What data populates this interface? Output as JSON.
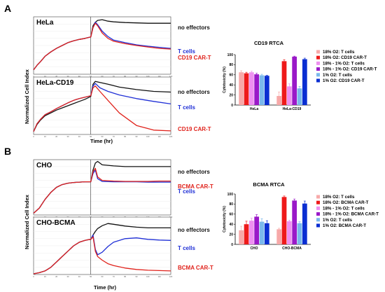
{
  "figure": {
    "panel_letters": [
      "A",
      "B"
    ]
  },
  "colors": {
    "black": "#111111",
    "blue": "#1f2fd6",
    "red": "#e0231c",
    "light_pink": "#f7a9a9",
    "red_bar": "#ee1a1a",
    "light_violet": "#ee90f0",
    "purple": "#9a19c8",
    "light_blue": "#7ab8ec",
    "dark_blue": "#0a2ed2"
  },
  "rtca": {
    "ylabel": "Normalized Cell Index",
    "xlabel": "Time (hr)"
  },
  "chart_data": [
    {
      "id": "hela",
      "type": "line",
      "cell_title": "HeLa",
      "xlabel": "Time (hr)",
      "ylabel": "Normalized Cell Index",
      "tick_labels": [
        "0",
        "10",
        "20",
        "30",
        "40",
        "50",
        "60",
        "70",
        "80",
        "90",
        "100",
        "110",
        "120"
      ],
      "xlim": [
        0,
        120
      ],
      "ylim": [
        0,
        1.6
      ],
      "series": [
        {
          "name": "no effectors",
          "color": "black",
          "x": [
            0,
            3,
            6,
            10,
            15,
            20,
            25,
            30,
            35,
            40,
            45,
            50,
            52,
            54,
            56,
            60,
            65,
            70,
            80,
            90,
            100,
            110,
            120
          ],
          "y": [
            0.12,
            0.25,
            0.35,
            0.5,
            0.62,
            0.72,
            0.8,
            0.88,
            0.93,
            0.97,
            1.0,
            1.04,
            1.35,
            1.45,
            1.5,
            1.52,
            1.48,
            1.46,
            1.44,
            1.43,
            1.42,
            1.42,
            1.42
          ]
        },
        {
          "name": "T cells",
          "color": "blue",
          "x": [
            0,
            3,
            6,
            10,
            15,
            20,
            25,
            30,
            35,
            40,
            45,
            50,
            52,
            54,
            56,
            60,
            65,
            70,
            80,
            90,
            100,
            110,
            120
          ],
          "y": [
            0.12,
            0.25,
            0.35,
            0.5,
            0.62,
            0.72,
            0.8,
            0.88,
            0.93,
            0.97,
            1.0,
            1.04,
            1.3,
            1.45,
            1.38,
            1.2,
            1.05,
            0.95,
            0.88,
            0.82,
            0.78,
            0.75,
            0.72
          ]
        },
        {
          "name": "CD19 CAR-T",
          "color": "red",
          "x": [
            0,
            3,
            6,
            10,
            15,
            20,
            25,
            30,
            35,
            40,
            45,
            50,
            52,
            54,
            56,
            60,
            65,
            70,
            80,
            90,
            100,
            110,
            120
          ],
          "y": [
            0.12,
            0.25,
            0.35,
            0.5,
            0.62,
            0.72,
            0.8,
            0.88,
            0.93,
            0.97,
            1.0,
            1.04,
            1.3,
            1.42,
            1.35,
            1.15,
            1.0,
            0.92,
            0.85,
            0.8,
            0.76,
            0.72,
            0.7
          ]
        }
      ]
    },
    {
      "id": "hela_cd19",
      "type": "line",
      "cell_title": "HeLa-CD19",
      "xlabel": "Time (hr)",
      "ylabel": "Normalized Cell Index",
      "tick_labels": [
        "0",
        "10",
        "20",
        "30",
        "40",
        "50",
        "60",
        "70",
        "80",
        "90",
        "100",
        "110",
        "120"
      ],
      "xlim": [
        0,
        120
      ],
      "ylim": [
        0,
        1.6
      ],
      "series": [
        {
          "name": "no effectors",
          "color": "black",
          "x": [
            0,
            3,
            6,
            10,
            15,
            20,
            25,
            30,
            35,
            40,
            45,
            50,
            52,
            54,
            58,
            65,
            75,
            90,
            105,
            120
          ],
          "y": [
            0.08,
            0.28,
            0.4,
            0.52,
            0.6,
            0.68,
            0.74,
            0.8,
            0.86,
            0.92,
            0.98,
            1.06,
            1.4,
            1.48,
            1.45,
            1.4,
            1.32,
            1.25,
            1.2,
            1.18
          ]
        },
        {
          "name": "T cells",
          "color": "blue",
          "x": [
            0,
            3,
            6,
            10,
            15,
            20,
            25,
            30,
            35,
            40,
            45,
            50,
            52,
            54,
            58,
            65,
            75,
            90,
            105,
            120
          ],
          "y": [
            0.08,
            0.3,
            0.42,
            0.55,
            0.63,
            0.72,
            0.8,
            0.88,
            0.95,
            1.0,
            1.04,
            1.08,
            1.35,
            1.42,
            1.3,
            1.2,
            1.1,
            1.0,
            0.92,
            0.85
          ]
        },
        {
          "name": "CD19 CAR-T",
          "color": "red",
          "x": [
            0,
            3,
            6,
            10,
            15,
            20,
            25,
            30,
            35,
            40,
            45,
            50,
            52,
            54,
            58,
            65,
            75,
            90,
            105,
            120
          ],
          "y": [
            0.08,
            0.3,
            0.42,
            0.55,
            0.63,
            0.72,
            0.8,
            0.88,
            0.95,
            1.0,
            1.04,
            1.08,
            1.3,
            1.35,
            1.2,
            0.95,
            0.6,
            0.25,
            0.12,
            0.1
          ]
        }
      ]
    },
    {
      "id": "cho",
      "type": "line",
      "cell_title": "CHO",
      "xlabel": "Time (hr)",
      "ylabel": "Normalized Cell Index",
      "tick_labels": [
        "0",
        "10",
        "20",
        "30",
        "40",
        "50",
        "60",
        "70",
        "80",
        "90",
        "100",
        "110",
        "120"
      ],
      "xlim": [
        0,
        120
      ],
      "ylim": [
        0,
        1.6
      ],
      "series": [
        {
          "name": "no effectors",
          "color": "black",
          "x": [
            0,
            5,
            10,
            15,
            20,
            25,
            30,
            35,
            40,
            45,
            50,
            52,
            54,
            56,
            60,
            70,
            80,
            90,
            100,
            110,
            120
          ],
          "y": [
            0.05,
            0.2,
            0.45,
            0.65,
            0.8,
            0.88,
            0.92,
            0.94,
            0.95,
            0.96,
            0.96,
            1.3,
            1.5,
            1.55,
            1.45,
            1.42,
            1.4,
            1.4,
            1.4,
            1.4,
            1.4
          ]
        },
        {
          "name": "T cells",
          "color": "blue",
          "x": [
            0,
            5,
            10,
            15,
            20,
            25,
            30,
            35,
            40,
            45,
            50,
            52,
            54,
            56,
            60,
            70,
            80,
            90,
            100,
            110,
            120
          ],
          "y": [
            0.05,
            0.2,
            0.45,
            0.65,
            0.8,
            0.88,
            0.92,
            0.94,
            0.95,
            0.96,
            0.96,
            1.2,
            1.3,
            1.05,
            0.97,
            0.96,
            0.96,
            0.96,
            0.95,
            0.95,
            0.95
          ]
        },
        {
          "name": "BCMA CAR-T",
          "color": "red",
          "x": [
            0,
            5,
            10,
            15,
            20,
            25,
            30,
            35,
            40,
            45,
            50,
            52,
            54,
            56,
            60,
            70,
            80,
            90,
            100,
            110,
            120
          ],
          "y": [
            0.05,
            0.2,
            0.45,
            0.65,
            0.8,
            0.88,
            0.92,
            0.94,
            0.95,
            0.96,
            0.96,
            1.25,
            1.35,
            1.1,
            1.0,
            0.98,
            0.97,
            0.97,
            0.97,
            0.98,
            0.98
          ]
        }
      ]
    },
    {
      "id": "cho_bcma",
      "type": "line",
      "cell_title": "CHO-BCMA",
      "xlabel": "Time (hr)",
      "ylabel": "Normalized Cell Index",
      "tick_labels": [
        "0",
        "10",
        "20",
        "30",
        "40",
        "50",
        "60",
        "70",
        "80",
        "90",
        "100",
        "110",
        "120"
      ],
      "xlim": [
        0,
        120
      ],
      "ylim": [
        0,
        1.6
      ],
      "series": [
        {
          "name": "no effectors",
          "color": "black",
          "x": [
            0,
            5,
            10,
            15,
            20,
            25,
            30,
            35,
            40,
            45,
            48,
            50,
            52,
            54,
            56,
            60,
            65,
            70,
            80,
            90,
            100,
            110,
            120
          ],
          "y": [
            0.02,
            0.05,
            0.1,
            0.2,
            0.35,
            0.5,
            0.65,
            0.8,
            0.9,
            0.95,
            0.97,
            0.98,
            1.1,
            1.2,
            1.28,
            1.36,
            1.42,
            1.4,
            1.35,
            1.32,
            1.3,
            1.3,
            1.3
          ]
        },
        {
          "name": "T cells",
          "color": "blue",
          "x": [
            0,
            5,
            10,
            15,
            20,
            25,
            30,
            35,
            40,
            45,
            48,
            50,
            52,
            54,
            56,
            60,
            65,
            70,
            80,
            90,
            100,
            110,
            120
          ],
          "y": [
            0.02,
            0.05,
            0.1,
            0.2,
            0.35,
            0.5,
            0.65,
            0.8,
            0.9,
            0.95,
            0.97,
            0.98,
            1.1,
            0.7,
            0.55,
            0.62,
            0.78,
            0.9,
            1.0,
            1.02,
            0.98,
            0.96,
            0.95
          ]
        },
        {
          "name": "BCMA CAR-T",
          "color": "red",
          "x": [
            0,
            5,
            10,
            15,
            20,
            25,
            30,
            35,
            40,
            45,
            48,
            50,
            52,
            54,
            56,
            60,
            65,
            70,
            80,
            90,
            100,
            110,
            120
          ],
          "y": [
            0.02,
            0.05,
            0.1,
            0.2,
            0.35,
            0.5,
            0.65,
            0.8,
            0.9,
            0.95,
            0.97,
            0.98,
            1.05,
            0.65,
            0.5,
            0.4,
            0.3,
            0.25,
            0.18,
            0.14,
            0.12,
            0.11,
            0.1
          ]
        }
      ]
    },
    {
      "id": "cd19_rtca",
      "type": "bar",
      "title": "CD19 RTCA",
      "ylabel": "Cytotoxicity (%)",
      "ylim": [
        0,
        100
      ],
      "yticks": [
        "0",
        "20",
        "40",
        "60",
        "80",
        "100"
      ],
      "categories": [
        "HeLa",
        "HeLa-CD19"
      ],
      "series": [
        {
          "name": "18% O2: T cells",
          "color": "light_pink",
          "values": [
            65,
            18
          ],
          "errors": [
            3,
            8
          ]
        },
        {
          "name": "18% O2: CD19 CAR-T",
          "color": "red_bar",
          "values": [
            63,
            87
          ],
          "errors": [
            2,
            3
          ]
        },
        {
          "name": "18% - 1% O2: T cells",
          "color": "light_violet",
          "values": [
            65,
            37
          ],
          "errors": [
            2,
            5
          ]
        },
        {
          "name": "18% - 1% O2: CD19 CAR-T",
          "color": "purple",
          "values": [
            61,
            96
          ],
          "errors": [
            2,
            1
          ]
        },
        {
          "name": "1% O2: T cells",
          "color": "light_blue",
          "values": [
            59,
            33
          ],
          "errors": [
            2,
            4
          ]
        },
        {
          "name": "1% O2: CD19 CAR-T",
          "color": "dark_blue",
          "values": [
            58,
            91
          ],
          "errors": [
            1,
            2
          ]
        }
      ]
    },
    {
      "id": "bcma_rtca",
      "type": "bar",
      "title": "BCMA RTCA",
      "ylabel": "Cytotoxicity (%)",
      "ylim": [
        0,
        100
      ],
      "yticks": [
        "0",
        "20",
        "40",
        "60",
        "80",
        "100"
      ],
      "categories": [
        "CHO",
        "CHO-BCMA"
      ],
      "series": [
        {
          "name": "18% O2: T cells",
          "color": "light_pink",
          "values": [
            28,
            30
          ],
          "errors": [
            8,
            2
          ]
        },
        {
          "name": "18% O2: BCMA CAR-T",
          "color": "red_bar",
          "values": [
            40,
            94
          ],
          "errors": [
            6,
            2
          ]
        },
        {
          "name": "18% - 1% O2: T cells",
          "color": "light_violet",
          "values": [
            47,
            46
          ],
          "errors": [
            5,
            2
          ]
        },
        {
          "name": "18% - 1% O2: BCMA CAR-T",
          "color": "purple",
          "values": [
            55,
            87
          ],
          "errors": [
            4,
            3
          ]
        },
        {
          "name": "1% O2: T cells",
          "color": "light_blue",
          "values": [
            45,
            42
          ],
          "errors": [
            6,
            3
          ]
        },
        {
          "name": "1% O2: BCMA CAR-T",
          "color": "dark_blue",
          "values": [
            42,
            81
          ],
          "errors": [
            5,
            5
          ]
        }
      ]
    }
  ]
}
